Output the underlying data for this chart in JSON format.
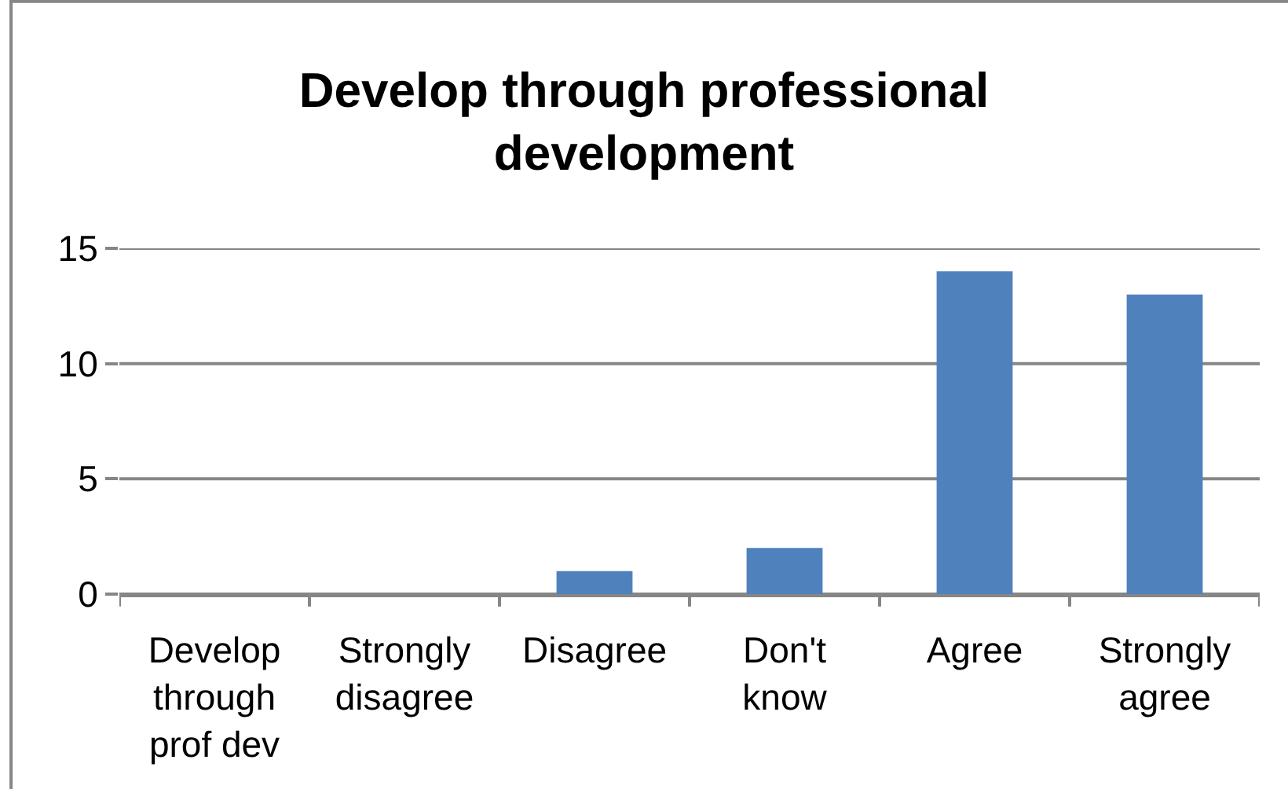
{
  "chart_data": {
    "type": "bar",
    "title": "Develop through professional development",
    "categories": [
      "Develop through prof dev",
      "Strongly disagree",
      "Disagree",
      "Don't know",
      "Agree",
      "Strongly agree"
    ],
    "values": [
      null,
      0,
      1,
      2,
      14,
      13
    ],
    "color": "#4f81bd",
    "ylim": [
      0,
      15
    ],
    "yticks": [
      0,
      5,
      10,
      15
    ],
    "grid": "y"
  }
}
